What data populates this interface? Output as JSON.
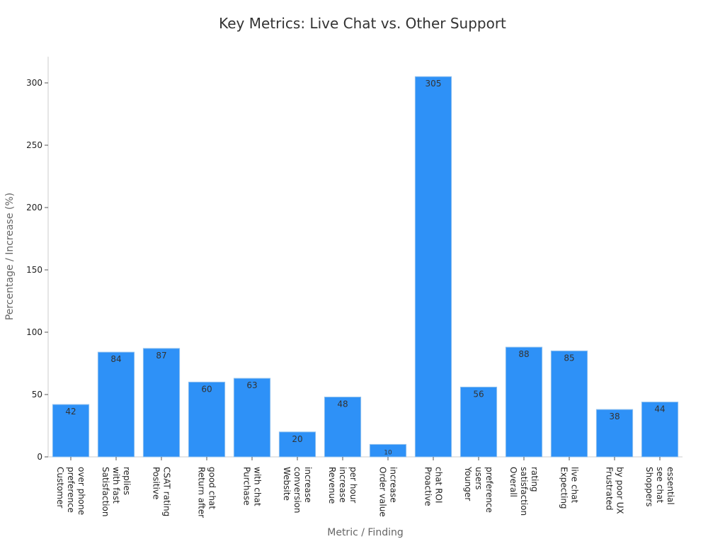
{
  "chart_data": {
    "type": "bar",
    "title": "Key Metrics: Live Chat vs. Other Support",
    "xlabel": "Metric / Finding",
    "ylabel": "Percentage / Increase (%)",
    "ylim": [
      0,
      320
    ],
    "yticks": [
      0,
      50,
      100,
      150,
      200,
      250,
      300
    ],
    "grid": false,
    "bar_color": "#2e91f7",
    "bar_edge_color": "#8fc0ee",
    "categories": [
      [
        "Customer",
        "preference",
        "over phone"
      ],
      [
        "Satisfaction",
        "with fast",
        "replies"
      ],
      [
        "Positive",
        "CSAT rating"
      ],
      [
        "Return after",
        "good chat"
      ],
      [
        "Purchase",
        "with chat"
      ],
      [
        "Website",
        "conversion",
        "increase"
      ],
      [
        "Revenue",
        "increase",
        "per hour"
      ],
      [
        "Order value",
        "increase"
      ],
      [
        "Proactive",
        "chat ROI"
      ],
      [
        "Younger",
        "users",
        "preference"
      ],
      [
        "Overall",
        "satisfaction",
        "rating"
      ],
      [
        "Expecting",
        "live chat"
      ],
      [
        "Frustrated",
        "by poor UX"
      ],
      [
        "Shoppers",
        "see chat",
        "essential"
      ]
    ],
    "values": [
      42,
      84,
      87,
      60,
      63,
      20,
      48,
      10,
      305,
      56,
      88,
      85,
      38,
      44
    ]
  }
}
